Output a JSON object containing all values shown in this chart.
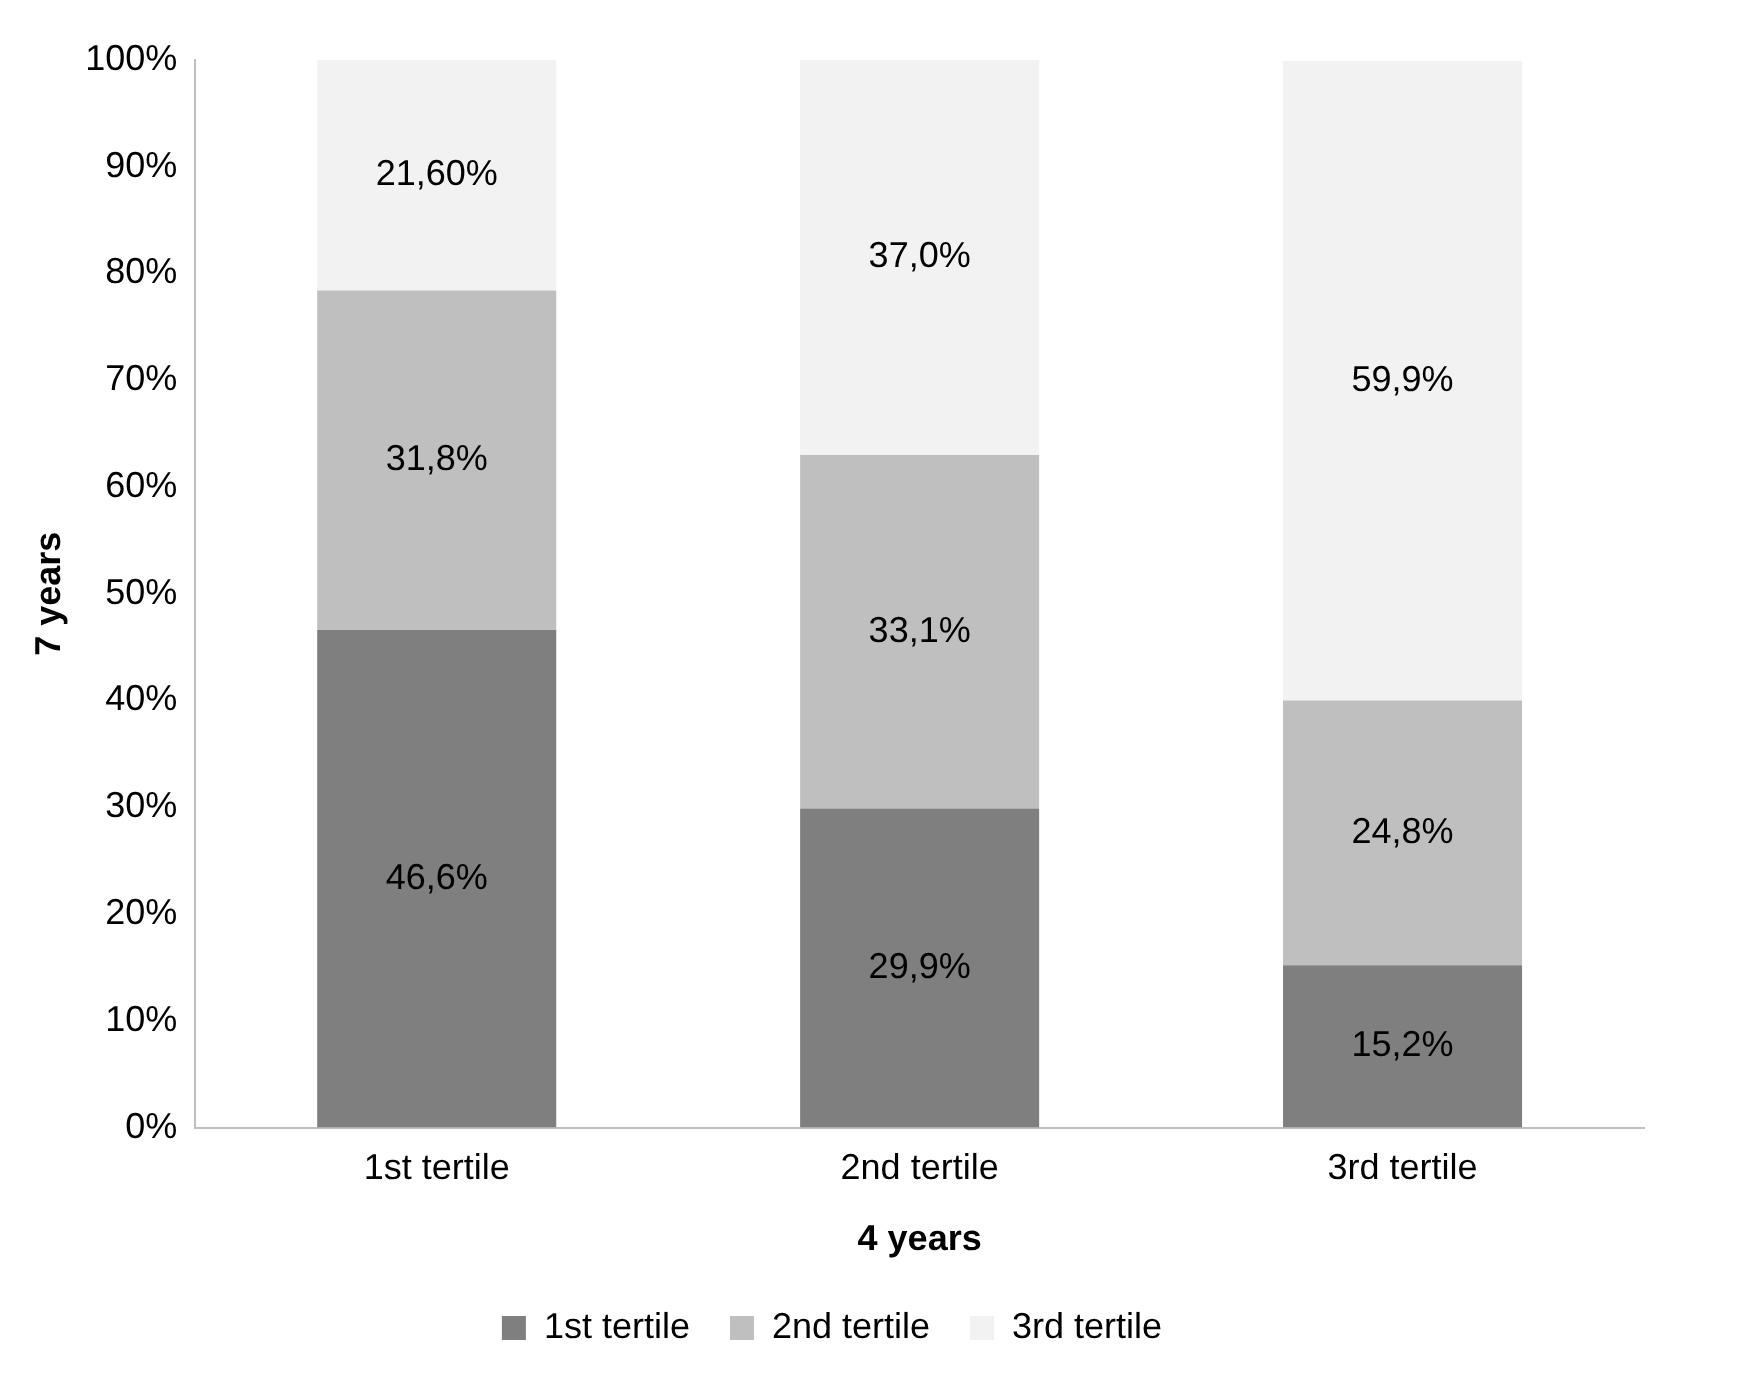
{
  "chart_data": {
    "type": "bar",
    "stacked": true,
    "xlabel": "4 years",
    "ylabel": "7 years",
    "categories": [
      "1st tertile",
      "2nd tertile",
      "3rd tertile"
    ],
    "series": [
      {
        "name": "1st tertile",
        "color": "#7f7f7f",
        "values": [
          46.6,
          29.9,
          15.2
        ],
        "value_labels": [
          "46,6%",
          "29,9%",
          "15,2%"
        ]
      },
      {
        "name": "2nd tertile",
        "color": "#bfbfbf",
        "values": [
          31.8,
          33.1,
          24.8
        ],
        "value_labels": [
          "31,8%",
          "33,1%",
          "24,8%"
        ]
      },
      {
        "name": "3rd tertile",
        "color": "#f2f2f2",
        "values": [
          21.6,
          37.0,
          59.9
        ],
        "value_labels": [
          "21,60%",
          "37,0%",
          "59,9%"
        ]
      }
    ],
    "ylim": [
      0,
      100
    ],
    "yticks": [
      {
        "value": 0,
        "label": "0%"
      },
      {
        "value": 10,
        "label": "10%"
      },
      {
        "value": 20,
        "label": "20%"
      },
      {
        "value": 30,
        "label": "30%"
      },
      {
        "value": 40,
        "label": "40%"
      },
      {
        "value": 50,
        "label": "50%"
      },
      {
        "value": 60,
        "label": "60%"
      },
      {
        "value": 70,
        "label": "70%"
      },
      {
        "value": 80,
        "label": "80%"
      },
      {
        "value": 90,
        "label": "90%"
      },
      {
        "value": 100,
        "label": "100%"
      }
    ],
    "grid": false,
    "legend": "bottom"
  }
}
